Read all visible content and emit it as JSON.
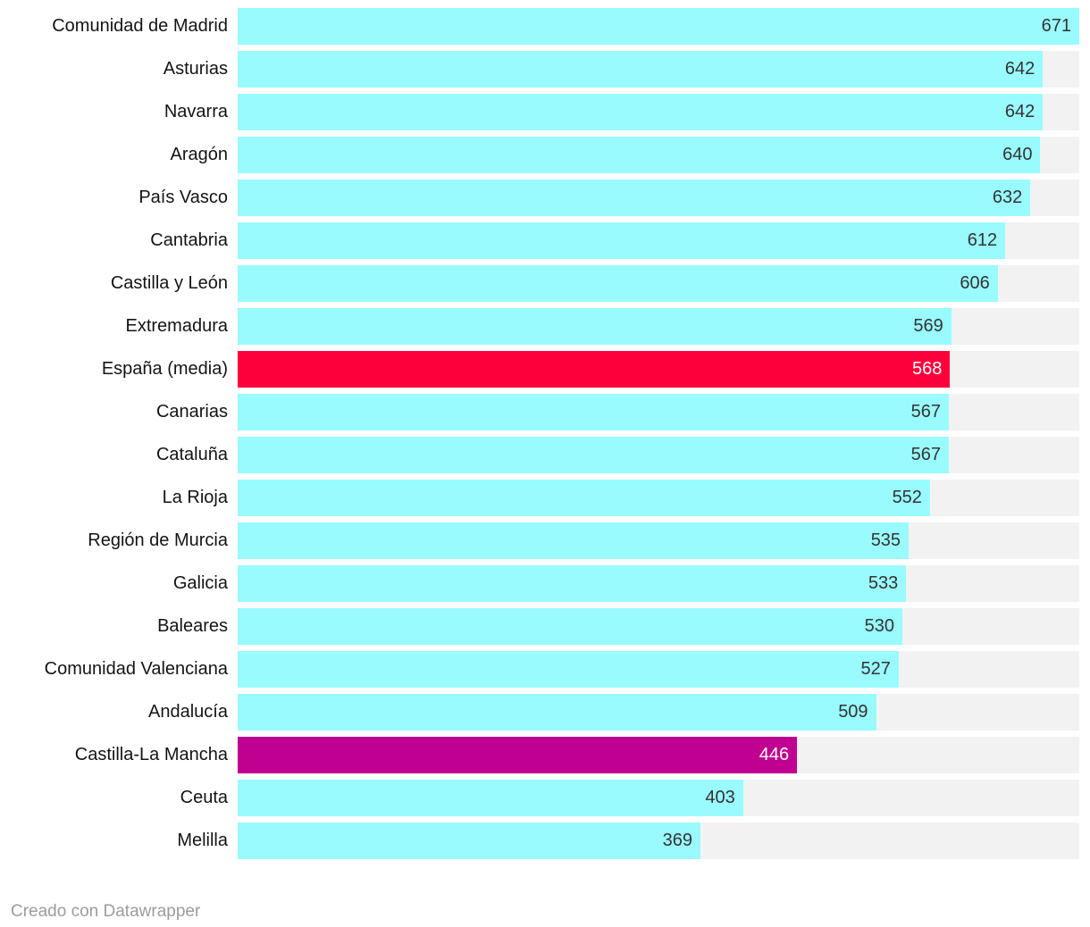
{
  "chart_data": {
    "type": "bar",
    "orientation": "horizontal",
    "xlim": [
      0,
      671
    ],
    "grid": false,
    "legend": false,
    "categories": [
      "Comunidad de Madrid",
      "Asturias",
      "Navarra",
      "Aragón",
      "País Vasco",
      "Cantabria",
      "Castilla y León",
      "Extremadura",
      "España (media)",
      "Canarias",
      "Cataluña",
      "La Rioja",
      "Región de Murcia",
      "Galicia",
      "Baleares",
      "Comunidad Valenciana",
      "Andalucía",
      "Castilla-La Mancha",
      "Ceuta",
      "Melilla"
    ],
    "values": [
      671,
      642,
      642,
      640,
      632,
      612,
      606,
      569,
      568,
      567,
      567,
      552,
      535,
      533,
      530,
      527,
      509,
      446,
      403,
      369
    ],
    "bar_color_keys": [
      "default",
      "default",
      "default",
      "default",
      "default",
      "default",
      "default",
      "default",
      "highlight_red",
      "default",
      "default",
      "default",
      "default",
      "default",
      "default",
      "default",
      "default",
      "highlight_magenta",
      "default",
      "default"
    ],
    "highlighted_categories": [
      "España (media)",
      "Castilla-La Mancha"
    ]
  },
  "palette": {
    "default": "#99fbfd",
    "highlight_red": "#fd003c",
    "highlight_magenta": "#c00090",
    "track": "#f2f2f2",
    "value_text": "#333333",
    "value_text_on_highlight": "#ffffff",
    "label_text": "#141414",
    "footer_text": "#9a9da0"
  },
  "footer": {
    "attribution": "Creado con Datawrapper"
  }
}
